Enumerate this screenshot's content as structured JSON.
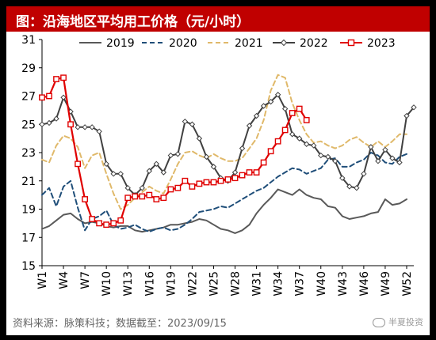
{
  "colors": {
    "title_bg": "#c00000",
    "s2019": "#595959",
    "s2020": "#1f4e79",
    "s2021": "#e0b96a",
    "s2022": "#404040",
    "s2023": "#e00000"
  },
  "header": {
    "title": "图：沿海地区平均用工价格（元/小时）"
  },
  "footer": {
    "source": "资料来源：脉策科技；数据截至：2023/09/15",
    "watermark": "半夏投资"
  },
  "chart_data": {
    "type": "line",
    "title": "图：沿海地区平均用工价格（元/小时）",
    "xlabel": "",
    "ylabel": "",
    "ylim": [
      15,
      31
    ],
    "yticks": [
      15,
      17,
      19,
      21,
      23,
      25,
      27,
      29,
      31
    ],
    "x_range": [
      1,
      53
    ],
    "xticks": [
      "W1",
      "W4",
      "W7",
      "W10",
      "W13",
      "W16",
      "W19",
      "W22",
      "W25",
      "W28",
      "W31",
      "W34",
      "W37",
      "W40",
      "W43",
      "W46",
      "W49",
      "W52"
    ],
    "xtick_weeks": [
      1,
      4,
      7,
      10,
      13,
      16,
      19,
      22,
      25,
      28,
      31,
      34,
      37,
      40,
      43,
      46,
      49,
      52
    ],
    "grid": false,
    "legend_position": "top",
    "series": [
      {
        "name": "2019",
        "style": "solid",
        "color_key": "s2019",
        "marker": "none",
        "x": [
          1,
          2,
          3,
          4,
          5,
          6,
          7,
          8,
          9,
          10,
          11,
          12,
          13,
          14,
          15,
          16,
          17,
          18,
          19,
          20,
          21,
          22,
          23,
          24,
          25,
          26,
          27,
          28,
          29,
          30,
          31,
          32,
          33,
          34,
          35,
          36,
          37,
          38,
          39,
          40,
          41,
          42,
          43,
          44,
          45,
          46,
          47,
          48,
          49,
          50,
          51,
          52
        ],
        "y": [
          17.6,
          17.8,
          18.2,
          18.6,
          18.7,
          18.3,
          18.0,
          18.1,
          18.0,
          17.8,
          17.7,
          17.8,
          17.8,
          17.5,
          17.4,
          17.5,
          17.6,
          17.7,
          17.9,
          17.9,
          18.0,
          18.1,
          18.3,
          18.2,
          17.9,
          17.6,
          17.5,
          17.3,
          17.5,
          17.9,
          18.7,
          19.3,
          19.8,
          20.4,
          20.2,
          20.0,
          20.4,
          20.0,
          19.8,
          19.7,
          19.2,
          19.1,
          18.5,
          18.3,
          18.4,
          18.5,
          18.7,
          18.8,
          19.7,
          19.3,
          19.4,
          19.7
        ]
      },
      {
        "name": "2020",
        "style": "dashed",
        "color_key": "s2020",
        "marker": "none",
        "x": [
          1,
          2,
          3,
          4,
          5,
          6,
          7,
          8,
          9,
          10,
          11,
          12,
          13,
          14,
          15,
          16,
          17,
          18,
          19,
          20,
          21,
          22,
          23,
          24,
          25,
          26,
          27,
          28,
          29,
          30,
          31,
          32,
          33,
          34,
          35,
          36,
          37,
          38,
          39,
          40,
          41,
          42,
          43,
          44,
          45,
          46,
          47,
          48,
          49,
          50,
          51,
          52
        ],
        "y": [
          20.0,
          20.5,
          19.2,
          20.6,
          21.0,
          19.1,
          17.5,
          18.3,
          18.5,
          18.9,
          17.9,
          17.6,
          17.7,
          17.9,
          17.6,
          17.4,
          17.6,
          17.7,
          17.5,
          17.6,
          17.9,
          18.3,
          18.8,
          18.9,
          19.0,
          19.2,
          19.1,
          19.4,
          19.7,
          20.0,
          20.3,
          20.5,
          20.9,
          21.3,
          21.6,
          21.9,
          21.8,
          21.5,
          21.7,
          21.9,
          22.5,
          22.6,
          22.0,
          22.0,
          22.3,
          22.5,
          23.0,
          22.8,
          22.3,
          22.2,
          22.7,
          22.9
        ]
      },
      {
        "name": "2021",
        "style": "dashed",
        "color_key": "s2021",
        "marker": "none",
        "x": [
          1,
          2,
          3,
          4,
          5,
          6,
          7,
          8,
          9,
          10,
          11,
          12,
          13,
          14,
          15,
          16,
          17,
          18,
          19,
          20,
          21,
          22,
          23,
          24,
          25,
          26,
          27,
          28,
          29,
          30,
          31,
          32,
          33,
          34,
          35,
          36,
          37,
          38,
          39,
          40,
          41,
          42,
          43,
          44,
          45,
          46,
          47,
          48,
          49,
          50,
          51,
          52
        ],
        "y": [
          22.5,
          22.3,
          23.5,
          24.2,
          24.0,
          23.4,
          21.9,
          22.8,
          23.0,
          21.5,
          20.1,
          19.0,
          19.3,
          19.8,
          20.2,
          20.6,
          20.3,
          20.1,
          21.1,
          22.2,
          23.0,
          23.1,
          22.8,
          22.6,
          22.9,
          22.6,
          22.4,
          22.4,
          22.6,
          23.3,
          24.0,
          25.3,
          27.4,
          28.5,
          28.3,
          26.5,
          25.3,
          24.3,
          23.7,
          23.8,
          23.5,
          23.3,
          23.5,
          23.9,
          24.1,
          23.7,
          23.4,
          23.8,
          23.4,
          23.8,
          24.3,
          24.3
        ]
      },
      {
        "name": "2022",
        "style": "solid",
        "color_key": "s2022",
        "marker": "diamond",
        "x": [
          1,
          2,
          3,
          4,
          5,
          6,
          7,
          8,
          9,
          10,
          11,
          12,
          13,
          14,
          15,
          16,
          17,
          18,
          19,
          20,
          21,
          22,
          23,
          24,
          25,
          26,
          27,
          28,
          29,
          30,
          31,
          32,
          33,
          34,
          35,
          36,
          37,
          38,
          39,
          40,
          41,
          42,
          43,
          44,
          45,
          46,
          47,
          48,
          49,
          50,
          51,
          52,
          53
        ],
        "y": [
          25.0,
          25.1,
          25.4,
          26.9,
          25.9,
          24.8,
          24.8,
          24.8,
          24.5,
          22.2,
          21.5,
          21.5,
          20.5,
          20.0,
          20.5,
          21.7,
          22.2,
          21.6,
          22.8,
          22.9,
          25.2,
          25.0,
          24.0,
          22.7,
          22.0,
          21.2,
          21.0,
          21.6,
          23.3,
          24.9,
          25.6,
          26.3,
          26.6,
          27.1,
          26.1,
          24.3,
          24.0,
          23.6,
          23.5,
          22.8,
          22.7,
          22.4,
          21.2,
          20.6,
          20.5,
          21.5,
          23.4,
          22.4,
          23.2,
          22.6,
          22.3,
          25.6,
          26.2
        ]
      },
      {
        "name": "2023",
        "style": "solid",
        "color_key": "s2023",
        "marker": "square",
        "x": [
          1,
          2,
          3,
          4,
          5,
          6,
          7,
          8,
          9,
          10,
          11,
          12,
          13,
          14,
          15,
          16,
          17,
          18,
          19,
          20,
          21,
          22,
          23,
          24,
          25,
          26,
          27,
          28,
          29,
          30,
          31,
          32,
          33,
          34,
          35,
          36,
          37,
          38
        ],
        "y": [
          26.9,
          27.0,
          28.2,
          28.3,
          25.0,
          22.2,
          19.7,
          18.3,
          18.0,
          17.9,
          18.0,
          18.2,
          19.8,
          19.9,
          19.9,
          20.0,
          19.7,
          19.8,
          20.4,
          20.5,
          21.0,
          20.6,
          20.8,
          20.9,
          20.9,
          21.0,
          21.1,
          21.2,
          21.4,
          21.6,
          21.6,
          22.3,
          23.1,
          23.8,
          24.6,
          25.8,
          26.1,
          25.3
        ]
      }
    ]
  }
}
